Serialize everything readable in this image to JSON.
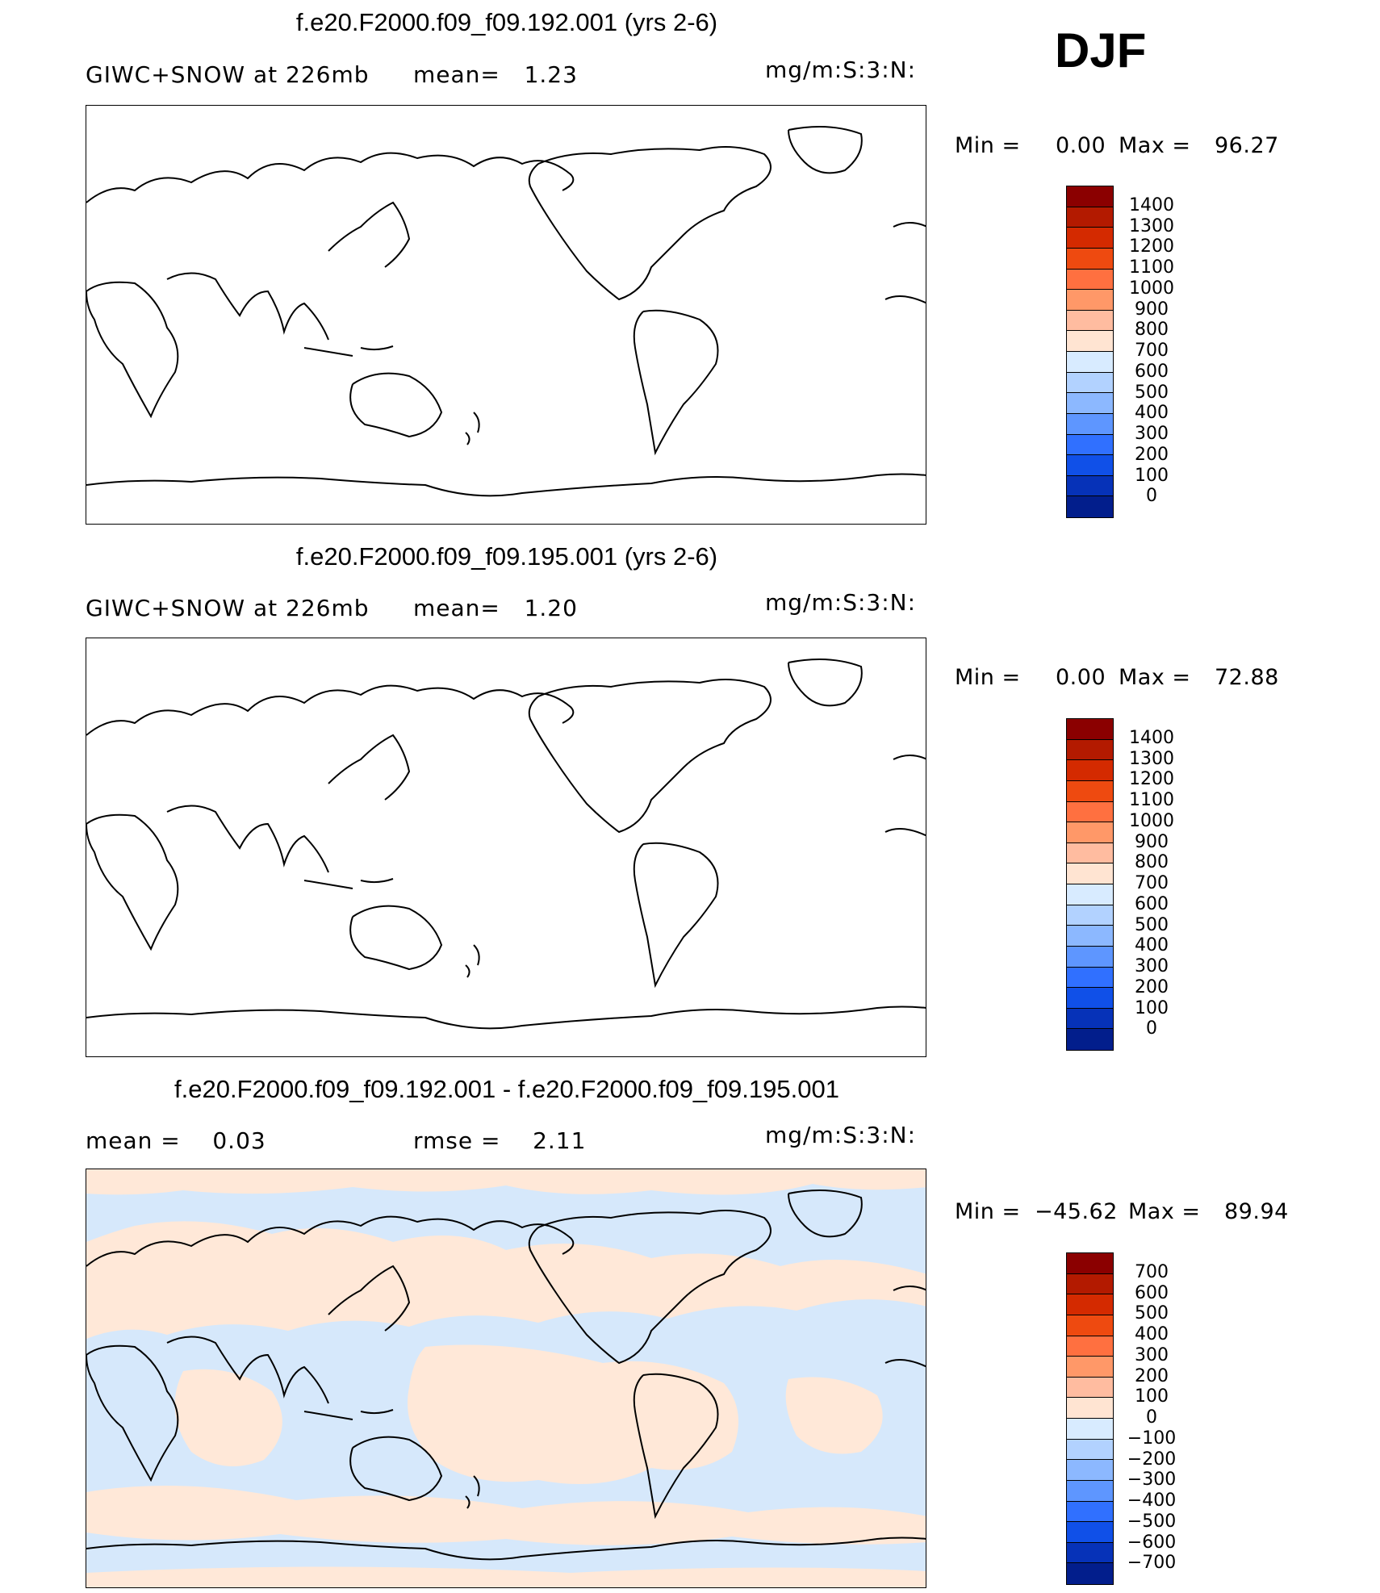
{
  "season": "DJF",
  "units": "mg/m:S:3:N:",
  "variable_label": "GIWC+SNOW at 226mb",
  "panels": [
    {
      "title": "f.e20.F2000.f09_f09.192.001 (yrs 2-6)",
      "stat1": "mean=   1.23",
      "stat2": "",
      "min_label": "Min =",
      "min_value": "0.00",
      "max_label": "Max =",
      "max_value": "96.27",
      "colorbar": {
        "labels": [
          "1400",
          "1300",
          "1200",
          "1100",
          "1000",
          "900",
          "800",
          "700",
          "600",
          "500",
          "400",
          "300",
          "200",
          "100",
          "0"
        ],
        "colors": [
          "#8b0000",
          "#b31a00",
          "#d42a00",
          "#ee4a10",
          "#ff7040",
          "#ff9868",
          "#ffbca0",
          "#ffe4d2",
          "#d8ebff",
          "#b2d2ff",
          "#8cb8ff",
          "#5e96ff",
          "#3070ff",
          "#1050e8",
          "#0632b8",
          "#021e8c"
        ]
      }
    },
    {
      "title": "f.e20.F2000.f09_f09.195.001 (yrs 2-6)",
      "stat1": "mean=   1.20",
      "stat2": "",
      "min_label": "Min =",
      "min_value": "0.00",
      "max_label": "Max =",
      "max_value": "72.88",
      "colorbar": {
        "labels": [
          "1400",
          "1300",
          "1200",
          "1100",
          "1000",
          "900",
          "800",
          "700",
          "600",
          "500",
          "400",
          "300",
          "200",
          "100",
          "0"
        ],
        "colors": [
          "#8b0000",
          "#b31a00",
          "#d42a00",
          "#ee4a10",
          "#ff7040",
          "#ff9868",
          "#ffbca0",
          "#ffe4d2",
          "#d8ebff",
          "#b2d2ff",
          "#8cb8ff",
          "#5e96ff",
          "#3070ff",
          "#1050e8",
          "#0632b8",
          "#021e8c"
        ]
      }
    },
    {
      "title": "f.e20.F2000.f09_f09.192.001 - f.e20.F2000.f09_f09.195.001",
      "stat1": "mean =    0.03",
      "stat2": "rmse =    2.11",
      "min_label": "Min =",
      "min_value": "−45.62",
      "max_label": "Max =",
      "max_value": "89.94",
      "colorbar": {
        "labels": [
          "700",
          "600",
          "500",
          "400",
          "300",
          "200",
          "100",
          "0",
          "−100",
          "−200",
          "−300",
          "−400",
          "−500",
          "−600",
          "−700"
        ],
        "colors": [
          "#8b0000",
          "#b31a00",
          "#d42a00",
          "#ee4a10",
          "#ff7040",
          "#ff9868",
          "#ffbca0",
          "#ffe4d2",
          "#d8ebff",
          "#b2d2ff",
          "#8cb8ff",
          "#5e96ff",
          "#3070ff",
          "#1050e8",
          "#0632b8",
          "#021e8c"
        ]
      }
    }
  ],
  "fill_colors": {
    "positive": "#ffe8d8",
    "negative": "#d6e8fb"
  }
}
